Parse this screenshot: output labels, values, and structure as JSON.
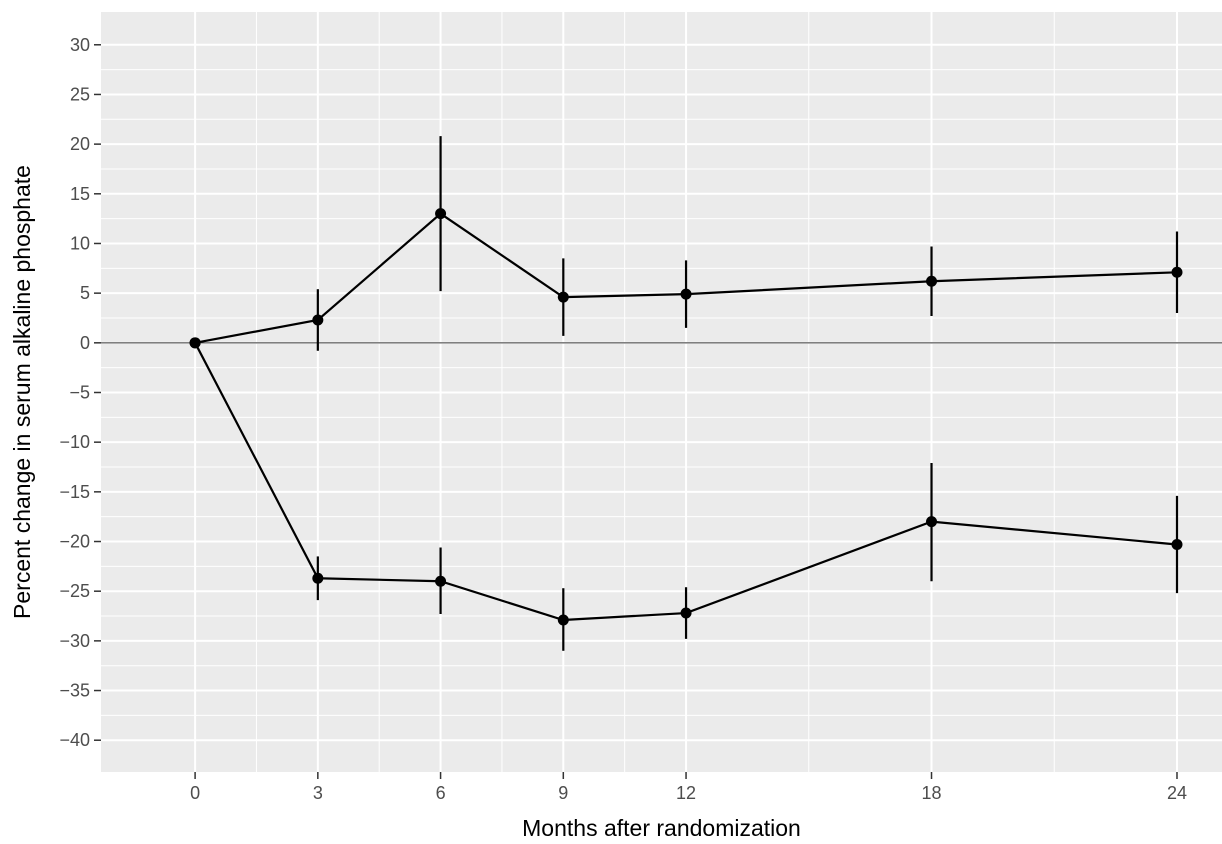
{
  "chart_data": {
    "type": "line",
    "xlabel": "Months after randomization",
    "ylabel": "Percent change in serum alkaline phosphate",
    "x_ticks": [
      0,
      3,
      6,
      9,
      12,
      18,
      24
    ],
    "y_ticks": [
      30,
      25,
      20,
      15,
      10,
      5,
      0,
      -5,
      -10,
      -15,
      -20,
      -25,
      -30,
      -35,
      -40
    ],
    "y_tick_labels": [
      "30",
      "25",
      "20",
      "15",
      "10",
      "5",
      "0",
      "−5",
      "−10",
      "−15",
      "−20",
      "−25",
      "−30",
      "−35",
      "−40"
    ],
    "xlim": [
      -2.3,
      25.1
    ],
    "ylim": [
      -43.2,
      33.3
    ],
    "grid": true,
    "reference_line_y": 0,
    "series": [
      {
        "x": [
          0,
          3,
          6,
          9,
          12,
          18,
          24
        ],
        "y": [
          0,
          2.3,
          13.0,
          4.6,
          4.9,
          6.2,
          7.1
        ],
        "lower": [
          0,
          -0.8,
          5.2,
          0.7,
          1.5,
          2.7,
          3.0
        ],
        "upper": [
          0,
          5.4,
          20.8,
          8.5,
          8.3,
          9.7,
          11.2
        ]
      },
      {
        "x": [
          0,
          3,
          6,
          9,
          12,
          18,
          24
        ],
        "y": [
          0,
          -23.7,
          -24.0,
          -27.9,
          -27.2,
          -18.0,
          -20.3
        ],
        "lower": [
          0,
          -25.9,
          -27.3,
          -31.0,
          -29.8,
          -24.0,
          -25.2
        ],
        "upper": [
          0,
          -21.5,
          -20.6,
          -24.7,
          -24.6,
          -12.1,
          -15.4
        ]
      }
    ],
    "colors": {
      "panel_background": "#ebebeb",
      "grid": "#ffffff",
      "series": "#000000",
      "tick_text": "#4d4d4d",
      "tick_mark": "#333333"
    }
  }
}
